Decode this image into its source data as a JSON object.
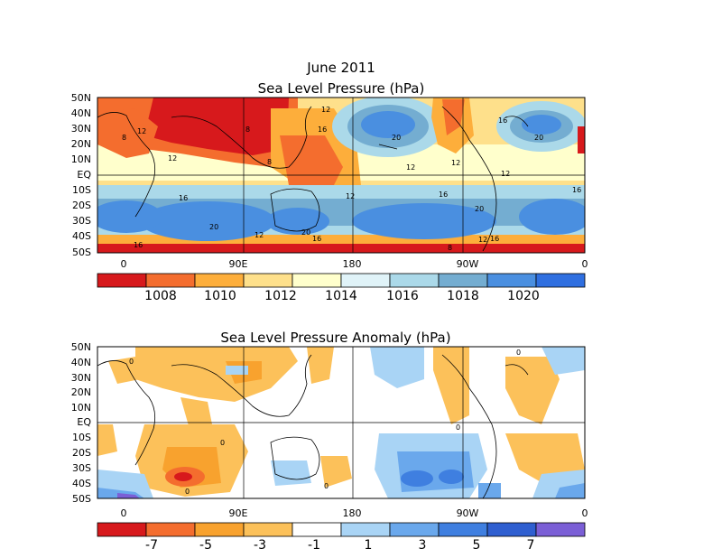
{
  "panels": [
    {
      "id": "slp",
      "title_line1": "June 2011",
      "title_line2": "Sea Level Pressure (hPa)",
      "lat_labels": [
        "50N",
        "40N",
        "30N",
        "20N",
        "10N",
        "EQ",
        "10S",
        "20S",
        "30S",
        "40S",
        "50S"
      ],
      "lon_labels": [
        "0",
        "90E",
        "180",
        "90W",
        "0"
      ],
      "contour_labels": [
        "8",
        "12",
        "16",
        "20"
      ],
      "colorbar": {
        "colors": [
          "#d7191c",
          "#f46d2e",
          "#fdae3b",
          "#fee08b",
          "#ffffcc",
          "#e0f3f8",
          "#abd9e9",
          "#74add1",
          "#4a8fe0",
          "#2f6fe0"
        ],
        "labels": [
          "1008",
          "1010",
          "1012",
          "1014",
          "1016",
          "1018",
          "1020"
        ]
      }
    },
    {
      "id": "anom",
      "title_line1": "Sea Level Pressure Anomaly (hPa)",
      "lat_labels": [
        "50N",
        "40N",
        "30N",
        "20N",
        "10N",
        "EQ",
        "10S",
        "20S",
        "30S",
        "40S",
        "50S"
      ],
      "lon_labels": [
        "0",
        "90E",
        "180",
        "90W",
        "0"
      ],
      "contour_labels": [
        "0"
      ],
      "colorbar": {
        "colors": [
          "#d7191c",
          "#f46d2e",
          "#f8a22e",
          "#fcc15a",
          "#ffffff",
          "#a9d4f5",
          "#6aa8ec",
          "#3f7fe0",
          "#2f5fd0",
          "#7b5fd6"
        ],
        "labels": [
          "-7",
          "-5",
          "-3",
          "-1",
          "1",
          "3",
          "5",
          "7"
        ]
      }
    }
  ]
}
